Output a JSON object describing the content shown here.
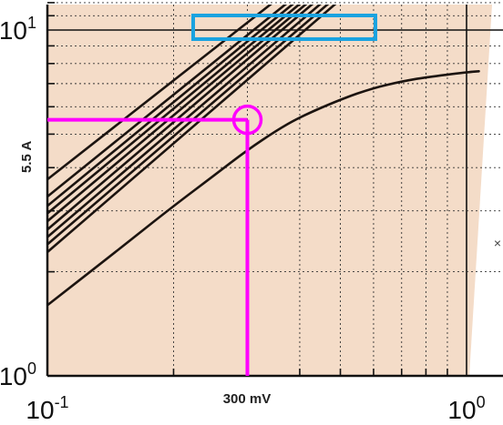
{
  "chart_data": {
    "type": "line",
    "title": "",
    "xlabel": "",
    "ylabel": "",
    "xscale": "log",
    "yscale": "log",
    "xlim": [
      0.1,
      1.07
    ],
    "ylim": [
      1,
      12.5
    ],
    "grid": true,
    "x_tick_labels": [
      {
        "value": 0.1,
        "base": "10",
        "exp": "-1"
      },
      {
        "value": 1.0,
        "base": "10",
        "exp": "0"
      }
    ],
    "y_tick_labels": [
      {
        "value": 1,
        "base": "10",
        "exp": "0"
      },
      {
        "value": 10,
        "base": "10",
        "exp": "1"
      }
    ],
    "series": [
      {
        "x": [
          0.1,
          0.51
        ],
        "y": [
          2.28,
          12.5
        ]
      },
      {
        "x": [
          0.1,
          0.49
        ],
        "y": [
          2.4,
          12.5
        ]
      },
      {
        "x": [
          0.1,
          0.47
        ],
        "y": [
          2.52,
          12.5
        ]
      },
      {
        "x": [
          0.1,
          0.45
        ],
        "y": [
          2.65,
          12.5
        ]
      },
      {
        "x": [
          0.1,
          0.435
        ],
        "y": [
          2.8,
          12.5
        ]
      },
      {
        "x": [
          0.1,
          0.42
        ],
        "y": [
          2.95,
          12.5
        ]
      },
      {
        "x": [
          0.1,
          0.405
        ],
        "y": [
          3.1,
          12.5
        ]
      },
      {
        "x": [
          0.1,
          0.39
        ],
        "y": [
          3.3,
          12.5
        ]
      },
      {
        "x": [
          0.1,
          0.36
        ],
        "y": [
          3.7,
          12.5
        ]
      },
      {
        "x": [
          0.1,
          0.15,
          0.2,
          0.25,
          0.3,
          0.35,
          0.4,
          0.5,
          0.6,
          0.7,
          0.8,
          1.0,
          1.07
        ],
        "y": [
          1.6,
          2.35,
          3.1,
          3.8,
          4.5,
          5.1,
          5.6,
          6.3,
          6.8,
          7.1,
          7.3,
          7.55,
          7.6
        ]
      }
    ],
    "annotations": {
      "current_label": "5.5 A",
      "voltage_label": "300 mV",
      "marker_x": 0.3,
      "marker_y": 5.5
    },
    "colors": {
      "plot_background": "#f4dcc8",
      "curves": "#1c1410",
      "highlight": "#ff00ff",
      "box": "#1aa3e0",
      "grid": "#333333"
    }
  }
}
